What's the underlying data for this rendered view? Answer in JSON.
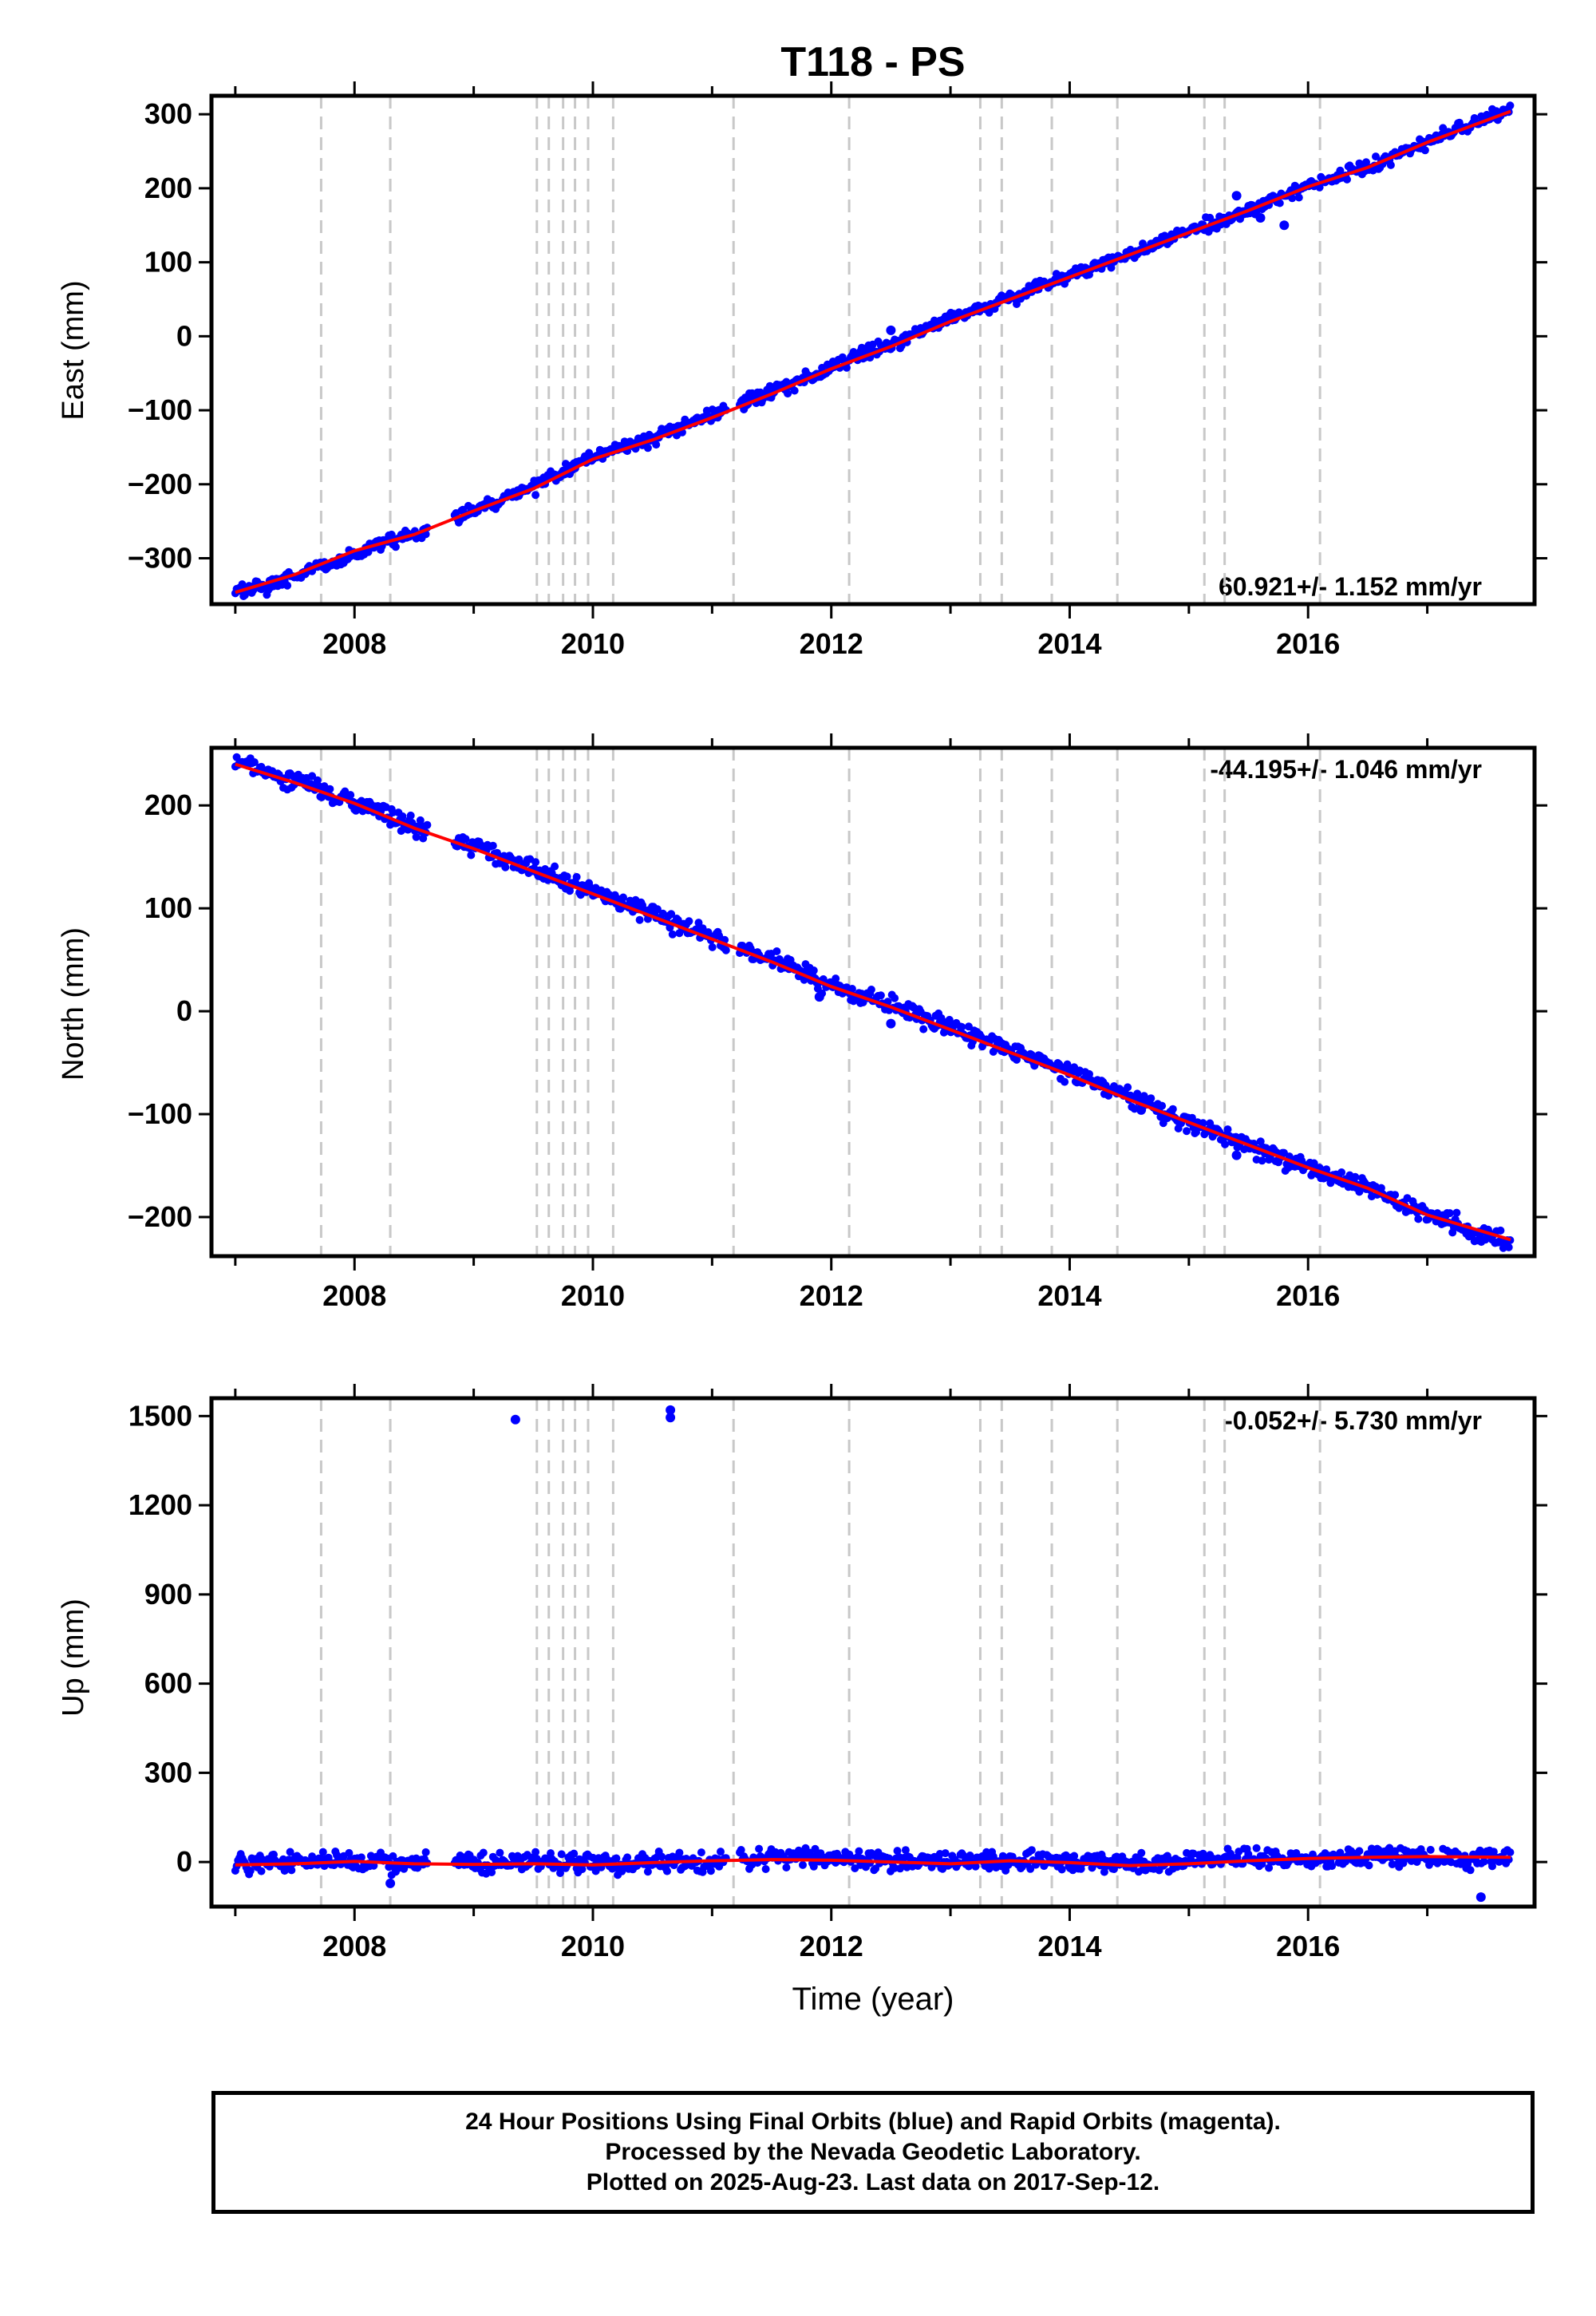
{
  "title": "T118 - PS",
  "xlabel": "Time (year)",
  "colors": {
    "final": "#0000ff",
    "model": "#ff0000",
    "steps": "#c8c8c8",
    "frame": "#000000"
  },
  "chart_data": [
    {
      "type": "scatter",
      "ylabel": "East (mm)",
      "rate": "60.921+/- 1.152 mm/yr",
      "rate_position": "bottom-right",
      "xlim": [
        2006.8,
        2017.9
      ],
      "ylim": [
        -362,
        325
      ],
      "yticks": [
        -300,
        -200,
        -100,
        0,
        100,
        200,
        300
      ],
      "xticks": [
        2008,
        2010,
        2012,
        2014,
        2016
      ],
      "series": [
        {
          "points": [
            [
              2007.0,
              -346
            ],
            [
              2007.3,
              -336
            ],
            [
              2007.6,
              -318
            ],
            [
              2007.9,
              -302
            ],
            [
              2008.2,
              -282
            ],
            [
              2008.5,
              -268
            ],
            [
              2009.0,
              -234
            ],
            [
              2009.5,
              -204
            ],
            [
              2010.0,
              -162
            ],
            [
              2010.5,
              -138
            ],
            [
              2011.0,
              -106
            ],
            [
              2011.5,
              -76
            ],
            [
              2012.0,
              -42
            ],
            [
              2012.5,
              -12
            ],
            [
              2013.0,
              22
            ],
            [
              2013.5,
              52
            ],
            [
              2014.0,
              82
            ],
            [
              2014.5,
              110
            ],
            [
              2015.0,
              142
            ],
            [
              2015.5,
              170
            ],
            [
              2016.0,
              204
            ],
            [
              2016.5,
              228
            ],
            [
              2017.0,
              262
            ],
            [
              2017.4,
              290
            ],
            [
              2017.7,
              306
            ]
          ]
        }
      ],
      "model": [
        [
          2007.0,
          -346
        ],
        [
          2007.5,
          -322
        ],
        [
          2008.0,
          -290
        ],
        [
          2008.5,
          -268
        ],
        [
          2009.0,
          -236
        ],
        [
          2009.5,
          -206
        ],
        [
          2010.0,
          -166
        ],
        [
          2010.5,
          -140
        ],
        [
          2011.0,
          -110
        ],
        [
          2011.5,
          -78
        ],
        [
          2012.0,
          -44
        ],
        [
          2012.5,
          -14
        ],
        [
          2013.0,
          20
        ],
        [
          2013.5,
          50
        ],
        [
          2014.0,
          80
        ],
        [
          2014.5,
          110
        ],
        [
          2015.0,
          140
        ],
        [
          2015.5,
          170
        ],
        [
          2016.0,
          202
        ],
        [
          2016.5,
          228
        ],
        [
          2017.0,
          262
        ],
        [
          2017.7,
          304
        ]
      ],
      "outliers": [
        [
          2012.5,
          8
        ],
        [
          2015.6,
          160
        ],
        [
          2015.8,
          150
        ],
        [
          2015.4,
          190
        ]
      ]
    },
    {
      "type": "scatter",
      "ylabel": "North (mm)",
      "rate": "-44.195+/- 1.046 mm/yr",
      "rate_position": "top-right",
      "xlim": [
        2006.8,
        2017.9
      ],
      "ylim": [
        -238,
        256
      ],
      "yticks": [
        -200,
        -100,
        0,
        100,
        200
      ],
      "xticks": [
        2008,
        2010,
        2012,
        2014,
        2016
      ],
      "series": [
        {
          "points": [
            [
              2007.0,
              242
            ],
            [
              2007.5,
              224
            ],
            [
              2008.0,
              204
            ],
            [
              2008.5,
              180
            ],
            [
              2009.0,
              160
            ],
            [
              2009.5,
              138
            ],
            [
              2010.0,
              116
            ],
            [
              2010.5,
              94
            ],
            [
              2011.0,
              72
            ],
            [
              2011.5,
              50
            ],
            [
              2012.0,
              26
            ],
            [
              2012.5,
              6
            ],
            [
              2013.0,
              -16
            ],
            [
              2013.5,
              -38
            ],
            [
              2014.0,
              -60
            ],
            [
              2014.5,
              -84
            ],
            [
              2015.0,
              -108
            ],
            [
              2015.5,
              -130
            ],
            [
              2016.0,
              -152
            ],
            [
              2016.5,
              -172
            ],
            [
              2017.0,
              -198
            ],
            [
              2017.7,
              -224
            ]
          ]
        }
      ],
      "model": [
        [
          2007.0,
          240
        ],
        [
          2007.5,
          222
        ],
        [
          2008.0,
          202
        ],
        [
          2008.5,
          178
        ],
        [
          2009.0,
          158
        ],
        [
          2009.5,
          136
        ],
        [
          2010.0,
          114
        ],
        [
          2010.5,
          92
        ],
        [
          2011.0,
          70
        ],
        [
          2011.5,
          48
        ],
        [
          2012.0,
          24
        ],
        [
          2012.5,
          4
        ],
        [
          2013.0,
          -18
        ],
        [
          2013.5,
          -40
        ],
        [
          2014.0,
          -62
        ],
        [
          2014.5,
          -86
        ],
        [
          2015.0,
          -108
        ],
        [
          2015.5,
          -130
        ],
        [
          2016.0,
          -152
        ],
        [
          2016.5,
          -172
        ],
        [
          2017.0,
          -198
        ],
        [
          2017.7,
          -222
        ]
      ],
      "outliers": [
        [
          2011.9,
          14
        ],
        [
          2012.5,
          -12
        ],
        [
          2014.6,
          -96
        ],
        [
          2015.4,
          -140
        ]
      ]
    },
    {
      "type": "scatter",
      "ylabel": "Up (mm)",
      "rate": "-0.052+/- 5.730 mm/yr",
      "rate_position": "top-right",
      "xlim": [
        2006.8,
        2017.9
      ],
      "ylim": [
        -150,
        1560
      ],
      "yticks": [
        0,
        300,
        600,
        900,
        1200,
        1500
      ],
      "xticks": [
        2008,
        2010,
        2012,
        2014,
        2016
      ],
      "series": [
        {
          "points": [
            [
              2007.0,
              -4
            ],
            [
              2007.5,
              2
            ],
            [
              2008.0,
              6
            ],
            [
              2008.5,
              -4
            ],
            [
              2009.0,
              -2
            ],
            [
              2009.5,
              0
            ],
            [
              2010.0,
              -6
            ],
            [
              2010.5,
              4
            ],
            [
              2011.0,
              -2
            ],
            [
              2011.5,
              10
            ],
            [
              2012.0,
              14
            ],
            [
              2012.5,
              6
            ],
            [
              2013.0,
              -2
            ],
            [
              2013.5,
              8
            ],
            [
              2014.0,
              0
            ],
            [
              2014.5,
              -4
            ],
            [
              2015.0,
              0
            ],
            [
              2015.5,
              12
            ],
            [
              2016.0,
              14
            ],
            [
              2016.5,
              18
            ],
            [
              2017.0,
              16
            ],
            [
              2017.7,
              12
            ]
          ]
        }
      ],
      "model": [
        [
          2007.0,
          -10
        ],
        [
          2007.5,
          -6
        ],
        [
          2008.0,
          2
        ],
        [
          2008.5,
          -6
        ],
        [
          2009.0,
          -8
        ],
        [
          2009.5,
          -6
        ],
        [
          2010.0,
          -10
        ],
        [
          2010.5,
          -2
        ],
        [
          2011.0,
          4
        ],
        [
          2011.5,
          8
        ],
        [
          2012.0,
          6
        ],
        [
          2012.5,
          0
        ],
        [
          2013.0,
          -6
        ],
        [
          2013.5,
          4
        ],
        [
          2014.0,
          -2
        ],
        [
          2014.5,
          -12
        ],
        [
          2015.0,
          -6
        ],
        [
          2015.5,
          4
        ],
        [
          2016.0,
          12
        ],
        [
          2016.5,
          16
        ],
        [
          2017.0,
          18
        ],
        [
          2017.7,
          16
        ]
      ],
      "outliers": [
        [
          2009.35,
          1488
        ],
        [
          2010.65,
          1520
        ],
        [
          2010.65,
          1495
        ],
        [
          2017.45,
          -118
        ],
        [
          2008.3,
          -72
        ]
      ]
    }
  ],
  "step_epochs": [
    2007.72,
    2008.3,
    2009.53,
    2009.63,
    2009.75,
    2009.85,
    2009.96,
    2010.17,
    2011.18,
    2012.15,
    2013.25,
    2013.43,
    2013.85,
    2014.4,
    2015.13,
    2015.3,
    2016.1
  ],
  "footer": {
    "line1": "24 Hour Positions Using Final Orbits (blue) and Rapid Orbits (magenta).",
    "line2": "Processed by the Nevada Geodetic Laboratory.",
    "line3": "Plotted on 2025-Aug-23. Last data on 2017-Sep-12."
  }
}
